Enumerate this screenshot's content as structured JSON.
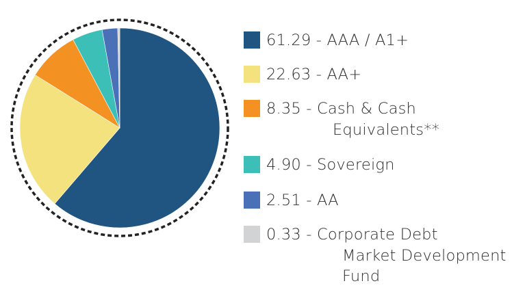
{
  "chart_data": {
    "type": "pie",
    "title": "",
    "unit": "%",
    "start_angle_deg": 0,
    "direction": "clockwise",
    "categories": [
      "AAA / A1+",
      "AA+",
      "Cash & Cash Equivalents**",
      "Sovereign",
      "AA",
      "Corporate Debt Market Development Fund"
    ],
    "values": [
      61.29,
      22.63,
      8.35,
      4.9,
      2.51,
      0.33
    ],
    "colors": [
      "#1f5580",
      "#f3e27e",
      "#f39223",
      "#3bbfb6",
      "#4a70b8",
      "#d1d3d4"
    ],
    "legend_position": "right",
    "outer_ring": "dashed"
  },
  "legend": {
    "items": [
      {
        "value": "61.29",
        "sep": " - ",
        "line1": "AAA / A1+",
        "line2": "",
        "line3": ""
      },
      {
        "value": "22.63",
        "sep": " - ",
        "line1": "AA+",
        "line2": "",
        "line3": ""
      },
      {
        "value": "8.35",
        "sep": " - ",
        "line1": "Cash & Cash",
        "line2": "Equivalents**",
        "line3": ""
      },
      {
        "value": "4.90",
        "sep": " - ",
        "line1": "Sovereign",
        "line2": "",
        "line3": ""
      },
      {
        "value": "2.51",
        "sep": " - ",
        "line1": "AA",
        "line2": "",
        "line3": ""
      },
      {
        "value": "0.33",
        "sep": " - ",
        "line1": "Corporate Debt",
        "line2": "Market Development",
        "line3": "Fund"
      }
    ]
  }
}
